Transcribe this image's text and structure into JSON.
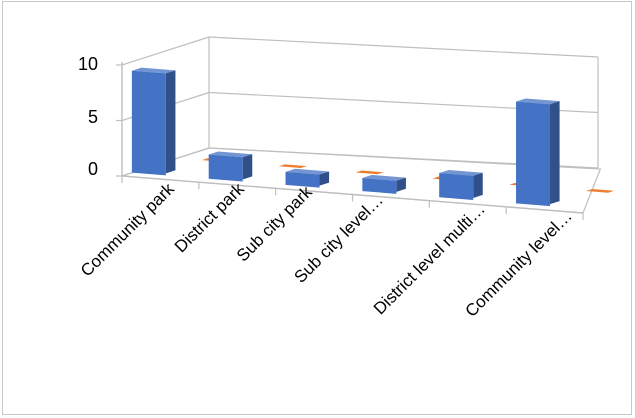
{
  "chart_data": {
    "type": "bar",
    "view": "3d-clustered",
    "categories": [
      "Community park",
      "District park",
      "Sub city park",
      "Sub city level…",
      "District level multi…",
      "Community level…"
    ],
    "series": [
      {
        "color": "#4472c4",
        "values": [
          9,
          2,
          1,
          1,
          2,
          9
        ]
      },
      {
        "color": "#ed7d31",
        "values": [
          0,
          0,
          0,
          0,
          0,
          0
        ]
      }
    ],
    "yticks": [
      "10",
      "5",
      "0"
    ],
    "ylim": [
      0,
      10
    ],
    "grid": true,
    "legend": "none",
    "title": "",
    "xlabel": "",
    "ylabel": ""
  }
}
